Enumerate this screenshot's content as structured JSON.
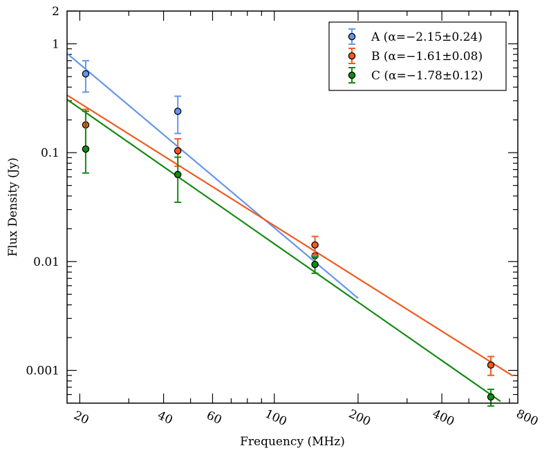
{
  "chart_data": {
    "type": "scatter",
    "xscale": "log",
    "yscale": "log",
    "xlabel": "Frequency (MHz)",
    "ylabel": "Flux Density (Jy)",
    "xlim": [
      18,
      750
    ],
    "ylim": [
      0.0005,
      2
    ],
    "x_major_ticks": [
      {
        "value": 20,
        "label": "20"
      },
      {
        "value": 40,
        "label": "40"
      },
      {
        "value": 60,
        "label": "60"
      },
      {
        "value": 100,
        "label": "100"
      },
      {
        "value": 200,
        "label": "200"
      },
      {
        "value": 400,
        "label": "400"
      },
      {
        "value": 800,
        "label": "800"
      }
    ],
    "x_minor_ticks": [
      30,
      50,
      70,
      80,
      90,
      300,
      500,
      600,
      700
    ],
    "y_major_ticks": [
      {
        "value": 0.001,
        "label": "0.001"
      },
      {
        "value": 0.01,
        "label": "0.01"
      },
      {
        "value": 0.1,
        "label": "0.1"
      },
      {
        "value": 1,
        "label": "1"
      },
      {
        "value": 2,
        "label": "2"
      }
    ],
    "y_minor_ticks": [
      0.0006,
      0.0007,
      0.0008,
      0.0009,
      0.002,
      0.003,
      0.004,
      0.005,
      0.006,
      0.007,
      0.008,
      0.009,
      0.02,
      0.03,
      0.04,
      0.05,
      0.06,
      0.07,
      0.08,
      0.09,
      0.2,
      0.3,
      0.4,
      0.5,
      0.6,
      0.7,
      0.8,
      0.9
    ],
    "legend_position": "top-right",
    "series": [
      {
        "name": "A",
        "legend_label": "A (α=−2.15±0.24)",
        "color": "#6495ed",
        "points": [
          {
            "x": 21,
            "y": 0.53,
            "ylo": 0.36,
            "yhi": 0.7
          },
          {
            "x": 45,
            "y": 0.24,
            "ylo": 0.15,
            "yhi": 0.33
          },
          {
            "x": 140,
            "y": 0.0113,
            "ylo": 0.0113,
            "yhi": 0.0113
          }
        ],
        "fit": {
          "x_start": 18,
          "x_end": 200,
          "y_at_20": 0.65,
          "slope": -2.15
        }
      },
      {
        "name": "B",
        "legend_label": "B (α=−1.61±0.08)",
        "color": "#f05a1e",
        "points": [
          {
            "x": 21,
            "y": 0.18,
            "ylo": 0.11,
            "yhi": 0.25
          },
          {
            "x": 45,
            "y": 0.104,
            "ylo": 0.075,
            "yhi": 0.134
          },
          {
            "x": 140,
            "y": 0.0142,
            "ylo": 0.0115,
            "yhi": 0.017
          },
          {
            "x": 600,
            "y": 0.00112,
            "ylo": 0.0009,
            "yhi": 0.00134
          }
        ],
        "fit": {
          "x_start": 18,
          "x_end": 720,
          "y_at_20": 0.285,
          "slope": -1.61
        }
      },
      {
        "name": "C",
        "legend_label": "C (α=−1.78±0.12)",
        "color": "#138a13",
        "points": [
          {
            "x": 21,
            "y": 0.108,
            "ylo": 0.065,
            "yhi": 0.24
          },
          {
            "x": 45,
            "y": 0.063,
            "ylo": 0.035,
            "yhi": 0.091
          },
          {
            "x": 140,
            "y": 0.0094,
            "ylo": 0.0078,
            "yhi": 0.011
          },
          {
            "x": 600,
            "y": 0.00057,
            "ylo": 0.00047,
            "yhi": 0.00067
          }
        ],
        "fit": {
          "x_start": 18,
          "x_end": 650,
          "y_at_20": 0.255,
          "slope": -1.78
        }
      }
    ]
  }
}
